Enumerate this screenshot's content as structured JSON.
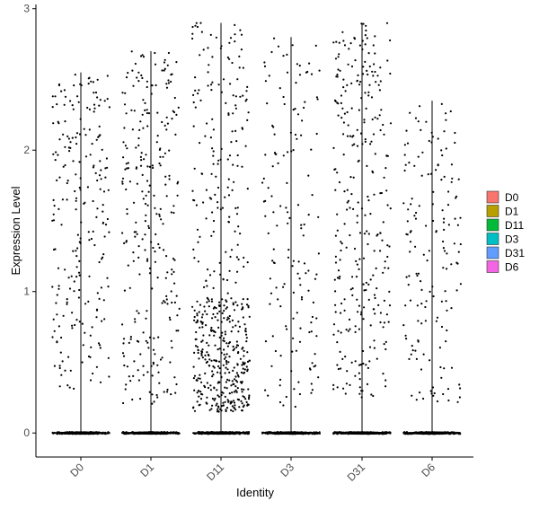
{
  "chart_data": {
    "type": "violin-jitter",
    "xlabel": "Identity",
    "ylabel": "Expression Level",
    "categories": [
      "D0",
      "D1",
      "D11",
      "D3",
      "D31",
      "D6"
    ],
    "ylim": [
      -0.17,
      3.03
    ],
    "y_ticks": [
      0,
      1,
      2,
      3
    ],
    "grid": false,
    "legend": {
      "position": "right",
      "entries": [
        {
          "label": "D0",
          "color": "#F8766D"
        },
        {
          "label": "D1",
          "color": "#B79F00"
        },
        {
          "label": "D11",
          "color": "#00BA38"
        },
        {
          "label": "D3",
          "color": "#00BFC4"
        },
        {
          "label": "D31",
          "color": "#619CFF"
        },
        {
          "label": "D6",
          "color": "#F564E3"
        }
      ]
    },
    "series": [
      {
        "name": "D0",
        "max": 2.55,
        "zero_fraction": 0.8,
        "nonzero_range": [
          0.3,
          2.55
        ],
        "nonzero_points": 230,
        "density": "uniform"
      },
      {
        "name": "D1",
        "max": 2.7,
        "zero_fraction": 0.8,
        "nonzero_range": [
          0.2,
          2.7
        ],
        "nonzero_points": 270,
        "density": "uniform"
      },
      {
        "name": "D11",
        "max": 2.9,
        "zero_fraction": 0.7,
        "nonzero_range": [
          0.15,
          2.9
        ],
        "nonzero_points": 520,
        "density": "low-heavy"
      },
      {
        "name": "D3",
        "max": 2.8,
        "zero_fraction": 0.85,
        "nonzero_range": [
          0.15,
          2.8
        ],
        "nonzero_points": 150,
        "density": "uniform"
      },
      {
        "name": "D31",
        "max": 2.9,
        "zero_fraction": 0.8,
        "nonzero_range": [
          0.25,
          2.9
        ],
        "nonzero_points": 300,
        "density": "uniform"
      },
      {
        "name": "D6",
        "max": 2.35,
        "zero_fraction": 0.85,
        "nonzero_range": [
          0.2,
          2.35
        ],
        "nonzero_points": 160,
        "density": "uniform"
      }
    ]
  }
}
